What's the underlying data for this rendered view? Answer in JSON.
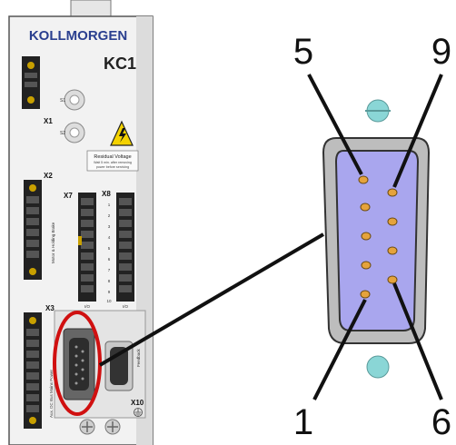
{
  "device": {
    "brand": "KOLLMORGEN",
    "model": "KC1",
    "warning_title": "Residual Voltage",
    "warning_line1": "Wait 5 min. after removing",
    "warning_line2": "power before servicing",
    "connectors": {
      "x1": "X1",
      "x2": "X2",
      "x3": "X3",
      "x7": "X7",
      "x8": "X8",
      "x10": "X10"
    },
    "side_labels": {
      "x2": "Motor & Holding Brake",
      "x3": "Aux. DC Bus Mains Power",
      "feedback": "Feedback"
    },
    "switches": {
      "s1": "S1",
      "s2": "S2"
    },
    "x8_pins": [
      "1",
      "2",
      "3",
      "4",
      "5",
      "6",
      "7",
      "8",
      "9",
      "10"
    ],
    "io_labels": [
      "I/O",
      "I/O"
    ]
  },
  "connector_detail": {
    "pin_labels": {
      "top_left": "5",
      "top_right": "9",
      "bottom_left": "1",
      "bottom_right": "6"
    }
  },
  "colors": {
    "device_body": "#f2f2f2",
    "device_border": "#555555",
    "highlight_circle": "#d01010",
    "dsub_face": "#a9a6ee",
    "dsub_shell": "#bdbdbd",
    "pin": "#e5a33c",
    "screw": "#8ad6d6"
  }
}
